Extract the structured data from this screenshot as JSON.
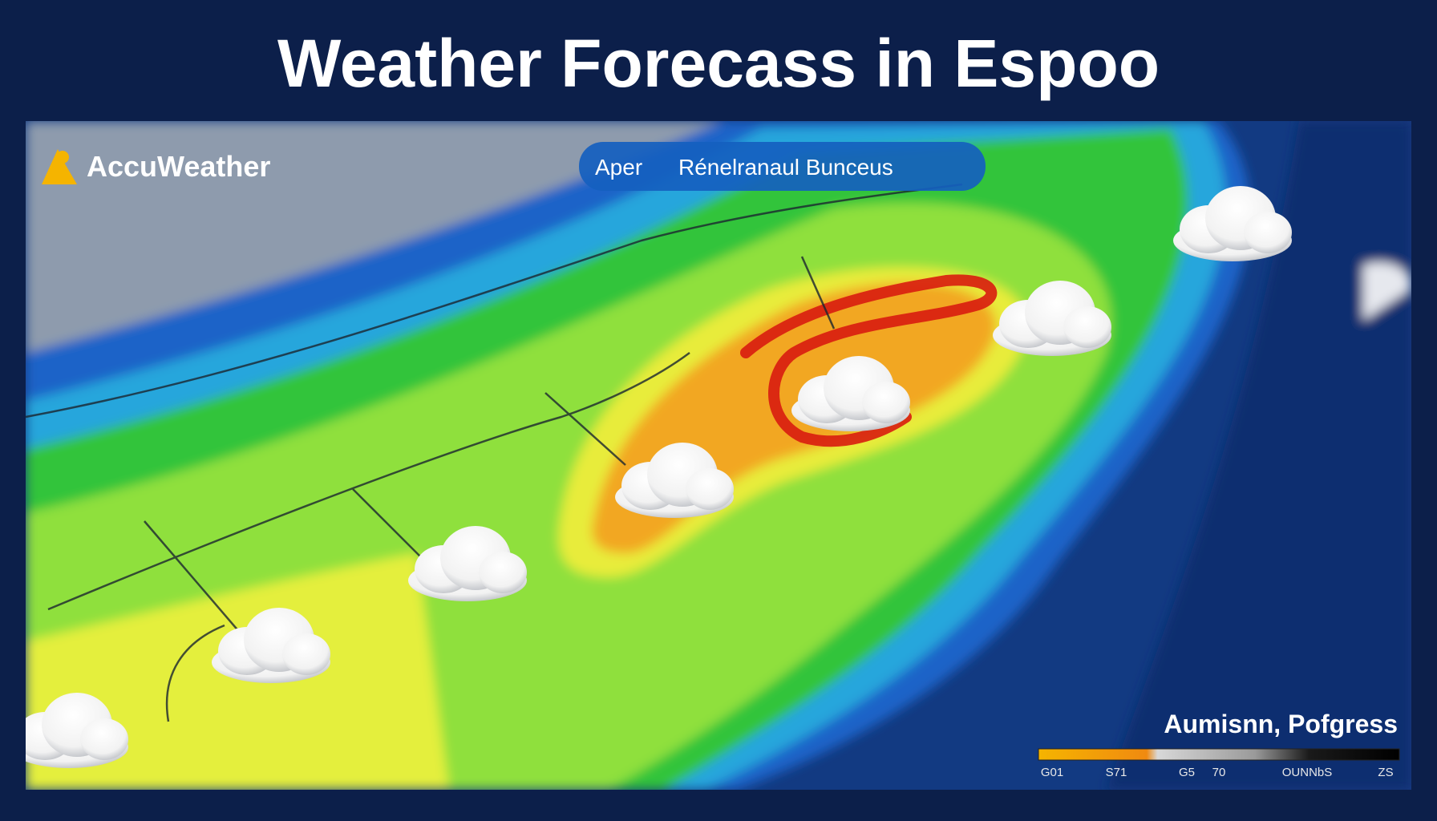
{
  "header": {
    "title": "Weather Forecass in Espoo"
  },
  "map": {
    "brand": "AccuWeather",
    "pill": {
      "left": "Aper",
      "right": "Rénelranaul Bunceus"
    }
  },
  "legend": {
    "title": "Aumisnn, Pofgress",
    "labels": [
      "G01",
      "S71",
      "G5",
      "70",
      "OUNNbS",
      "ZS"
    ]
  }
}
